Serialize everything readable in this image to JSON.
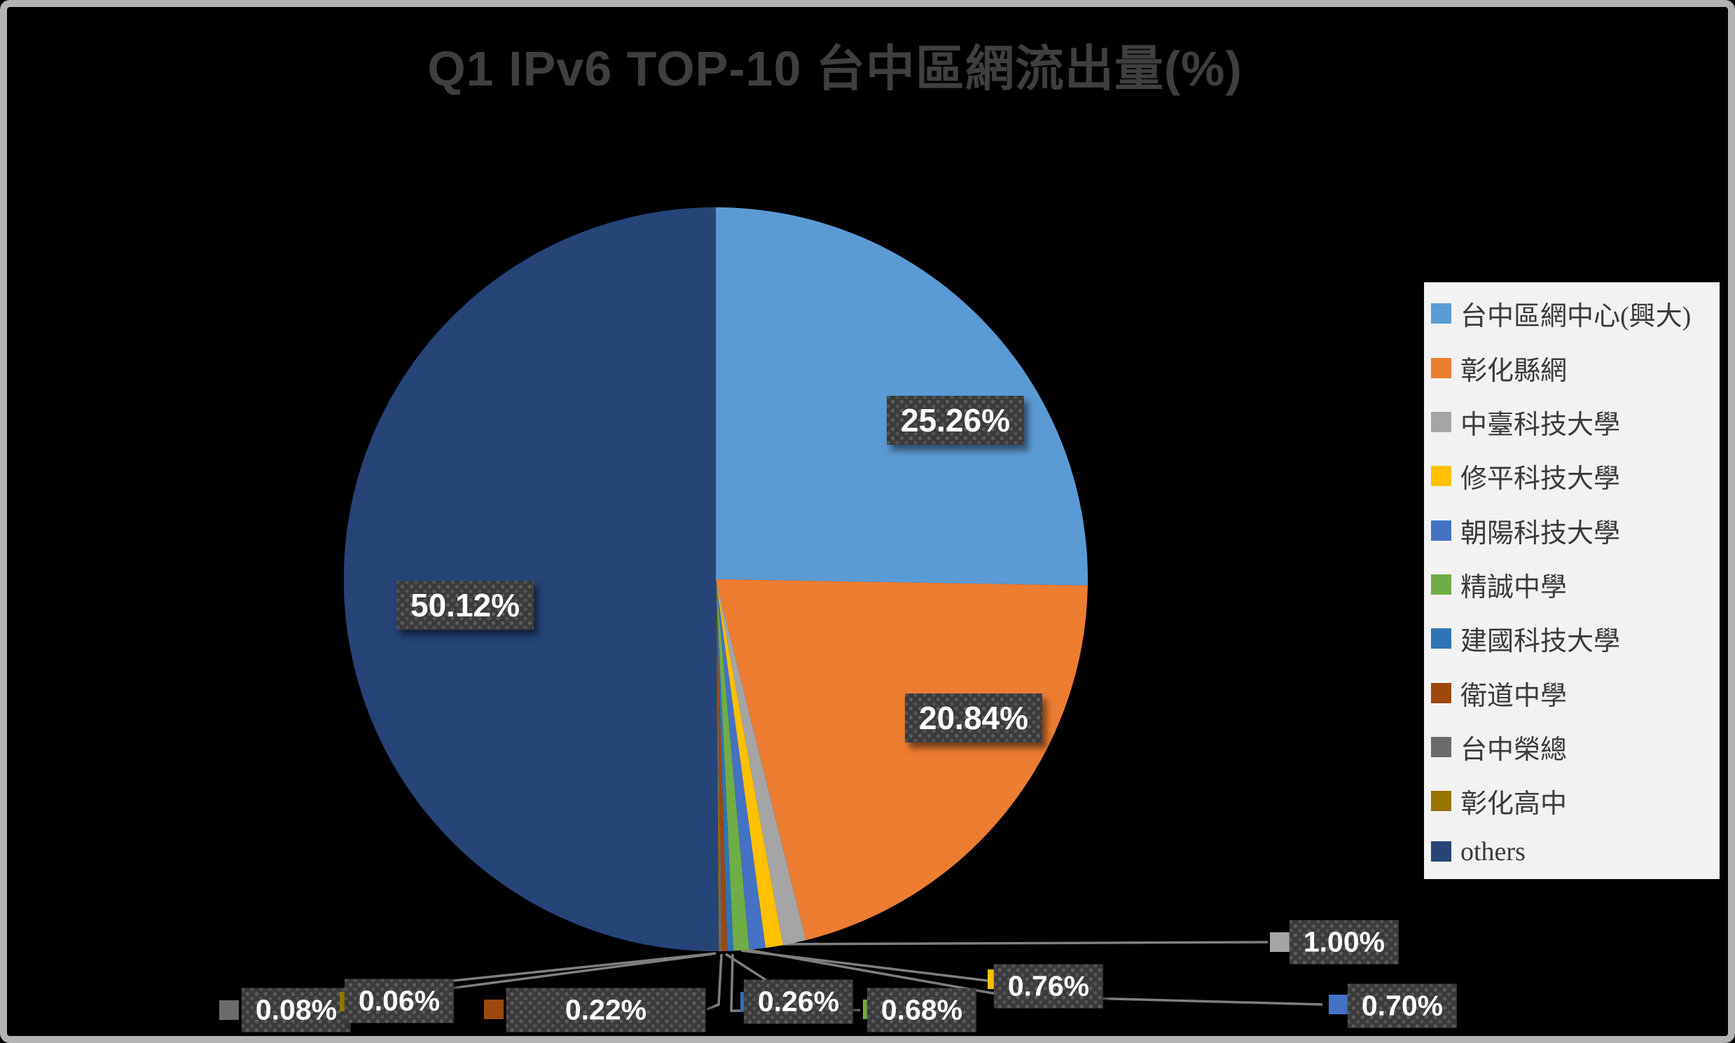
{
  "chart_data": {
    "type": "pie",
    "title": "Q1 IPv6 TOP-10 台中區網流出量(%)",
    "legend_position": "right",
    "direction": "clockwise",
    "start_angle_deg": 0,
    "slices": [
      {
        "name": "台中區網中心(興大)",
        "value": 25.26,
        "label": "25.26%",
        "color": "#5B9BD5"
      },
      {
        "name": "彰化縣網",
        "value": 20.84,
        "label": "20.84%",
        "color": "#ED7D31"
      },
      {
        "name": "中臺科技大學",
        "value": 1.0,
        "label": "1.00%",
        "color": "#A5A5A5"
      },
      {
        "name": "修平科技大學",
        "value": 0.76,
        "label": "0.76%",
        "color": "#FFC000"
      },
      {
        "name": "朝陽科技大學",
        "value": 0.7,
        "label": "0.70%",
        "color": "#4472C4"
      },
      {
        "name": "精誠中學",
        "value": 0.68,
        "label": "0.68%",
        "color": "#70AD47"
      },
      {
        "name": "建國科技大學",
        "value": 0.26,
        "label": "0.26%",
        "color": "#2E75B6"
      },
      {
        "name": "衛道中學",
        "value": 0.22,
        "label": "0.22%",
        "color": "#9E480E"
      },
      {
        "name": "台中榮總",
        "value": 0.08,
        "label": "0.08%",
        "color": "#6B6B6B"
      },
      {
        "name": "彰化高中",
        "value": 0.06,
        "label": "0.06%",
        "color": "#997300"
      },
      {
        "name": "others",
        "value": 50.12,
        "label": "50.12%",
        "color": "#264478"
      }
    ]
  },
  "colors": {
    "background": "#000000",
    "frame": "#B3B3B3",
    "title_text": "#3F3F42",
    "data_label_bg": "#3B3B3B",
    "data_label_text": "#FFFFFF",
    "leader_line": "#7F7F7F",
    "legend_bg": "#F2F2F2",
    "legend_text": "#3A3A3A"
  }
}
